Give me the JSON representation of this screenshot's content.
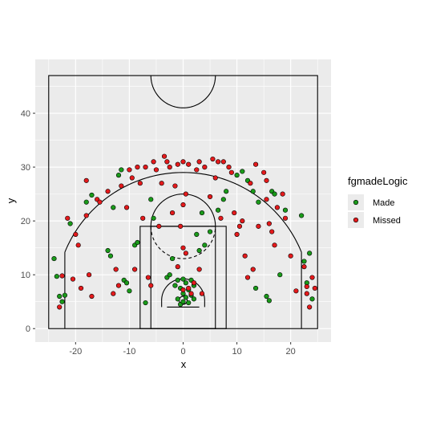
{
  "chart_data": {
    "type": "scatter",
    "title": "",
    "xlabel": "x",
    "ylabel": "y",
    "xlim": [
      -27.5,
      27.5
    ],
    "ylim": [
      -2.5,
      50
    ],
    "x_ticks": [
      -20,
      -10,
      0,
      10,
      20
    ],
    "y_ticks": [
      0,
      10,
      20,
      30,
      40
    ],
    "grid": true,
    "legend": {
      "title": "fgmadeLogic",
      "placement": "right"
    },
    "series": [
      {
        "name": "Made",
        "color": "#1a9a1a",
        "points": [
          [
            -24,
            13
          ],
          [
            -23.5,
            9.7
          ],
          [
            -23,
            6
          ],
          [
            -22.5,
            5
          ],
          [
            -22,
            6.2
          ],
          [
            -21,
            19.5
          ],
          [
            -18,
            23.5
          ],
          [
            -17,
            24.8
          ],
          [
            -14,
            14.5
          ],
          [
            -13.5,
            13.5
          ],
          [
            -13,
            22.5
          ],
          [
            -12,
            28.5
          ],
          [
            -11.5,
            29.5
          ],
          [
            -11,
            9
          ],
          [
            -10.5,
            8.5
          ],
          [
            -10,
            7
          ],
          [
            -9,
            15.5
          ],
          [
            -8.5,
            16
          ],
          [
            -7,
            4.8
          ],
          [
            -6,
            24
          ],
          [
            -5.5,
            20.5
          ],
          [
            -3,
            9.5
          ],
          [
            -2.5,
            10
          ],
          [
            -2,
            13
          ],
          [
            -1.5,
            8
          ],
          [
            -1,
            9
          ],
          [
            -1,
            5.5
          ],
          [
            -0.5,
            7.5
          ],
          [
            -0.5,
            4.5
          ],
          [
            0,
            9.2
          ],
          [
            0,
            6.5
          ],
          [
            0,
            5
          ],
          [
            0.5,
            8.5
          ],
          [
            0.5,
            5.8
          ],
          [
            1,
            7.2
          ],
          [
            1,
            4.8
          ],
          [
            1.5,
            9
          ],
          [
            1.5,
            6.2
          ],
          [
            2,
            8
          ],
          [
            2,
            5.5
          ],
          [
            2.5,
            17.5
          ],
          [
            3,
            14.5
          ],
          [
            3.5,
            21.5
          ],
          [
            4,
            15.5
          ],
          [
            5,
            18
          ],
          [
            6.5,
            22
          ],
          [
            7.5,
            24
          ],
          [
            8,
            25.5
          ],
          [
            10,
            28.5
          ],
          [
            11,
            29.2
          ],
          [
            12,
            27.5
          ],
          [
            13,
            25.5
          ],
          [
            13.5,
            7.5
          ],
          [
            14,
            23.5
          ],
          [
            15.5,
            6
          ],
          [
            16,
            5.2
          ],
          [
            16.5,
            25.5
          ],
          [
            17,
            25
          ],
          [
            18,
            10
          ],
          [
            19,
            22
          ],
          [
            22,
            21
          ],
          [
            22.5,
            12.5
          ],
          [
            23,
            8.5
          ],
          [
            24,
            5.5
          ],
          [
            23.5,
            14
          ]
        ]
      },
      {
        "name": "Missed",
        "color": "#e41a1c",
        "points": [
          [
            -23,
            4
          ],
          [
            -22.5,
            9.8
          ],
          [
            -21.5,
            20.5
          ],
          [
            -20,
            17.5
          ],
          [
            -19.5,
            15.5
          ],
          [
            -19,
            7.5
          ],
          [
            -18,
            21
          ],
          [
            -18,
            27.5
          ],
          [
            -17.5,
            10
          ],
          [
            -17,
            6
          ],
          [
            -16,
            24
          ],
          [
            -15.5,
            23.5
          ],
          [
            -14,
            25.5
          ],
          [
            -13,
            6.5
          ],
          [
            -12.5,
            11
          ],
          [
            -12,
            8
          ],
          [
            -11.5,
            26.5
          ],
          [
            -10.5,
            22.5
          ],
          [
            -10,
            29.5
          ],
          [
            -9.5,
            28
          ],
          [
            -9,
            11
          ],
          [
            -8.5,
            30
          ],
          [
            -8,
            27
          ],
          [
            -7.5,
            20.5
          ],
          [
            -7,
            30
          ],
          [
            -6.5,
            9.5
          ],
          [
            -6,
            8
          ],
          [
            -5.5,
            31
          ],
          [
            -5,
            29.5
          ],
          [
            -4.5,
            19
          ],
          [
            -4,
            27
          ],
          [
            -3.5,
            32
          ],
          [
            -3,
            31
          ],
          [
            -2.5,
            30
          ],
          [
            -2,
            21.5
          ],
          [
            -1.5,
            26.5
          ],
          [
            -1,
            30.5
          ],
          [
            -1,
            11.5
          ],
          [
            -0.5,
            19
          ],
          [
            0,
            31
          ],
          [
            0,
            23
          ],
          [
            0,
            15
          ],
          [
            0,
            7.2
          ],
          [
            0.5,
            25
          ],
          [
            0.5,
            14
          ],
          [
            1,
            30.5
          ],
          [
            1,
            7.5
          ],
          [
            1.5,
            6.5
          ],
          [
            2,
            8.5
          ],
          [
            2.5,
            29.5
          ],
          [
            3,
            31
          ],
          [
            3,
            11
          ],
          [
            3.5,
            6.5
          ],
          [
            4,
            30
          ],
          [
            5,
            24.5
          ],
          [
            5.5,
            31.5
          ],
          [
            6,
            28
          ],
          [
            6.5,
            31
          ],
          [
            7,
            20.5
          ],
          [
            7.5,
            31
          ],
          [
            8.5,
            30
          ],
          [
            9,
            29
          ],
          [
            9.5,
            21.5
          ],
          [
            10,
            17.5
          ],
          [
            10.5,
            19
          ],
          [
            11,
            20
          ],
          [
            11.5,
            13.5
          ],
          [
            12,
            9.5
          ],
          [
            12.5,
            27
          ],
          [
            13,
            11
          ],
          [
            13.5,
            30.5
          ],
          [
            14,
            19
          ],
          [
            15,
            29
          ],
          [
            15.5,
            27.5
          ],
          [
            15.5,
            24
          ],
          [
            16,
            19.5
          ],
          [
            16.5,
            18
          ],
          [
            17,
            15.5
          ],
          [
            17.5,
            22.5
          ],
          [
            18.5,
            25
          ],
          [
            19,
            20.5
          ],
          [
            20,
            13.5
          ],
          [
            21,
            7
          ],
          [
            22.5,
            11.5
          ],
          [
            23,
            6.5
          ],
          [
            23.5,
            4
          ],
          [
            24,
            9.5
          ],
          [
            24.5,
            7.5
          ],
          [
            23,
            7.8
          ],
          [
            -20.5,
            9.2
          ]
        ]
      }
    ]
  }
}
